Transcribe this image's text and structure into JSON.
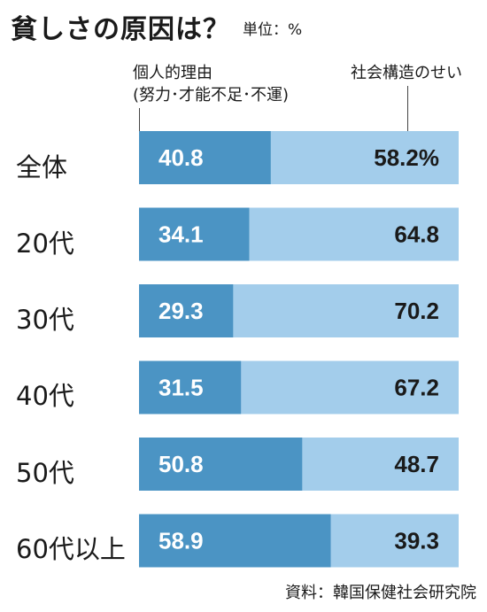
{
  "chart_data": {
    "type": "bar",
    "stacked": "horizontal-100",
    "title": "貧しさの原因は？",
    "unit_label": "単位：%",
    "series": [
      {
        "name": "個人的理由\n(努力･才能不足･不運)",
        "name_lines": [
          "個人的理由",
          "(努力･才能不足･不運)"
        ],
        "color": "#4b94c4",
        "values": [
          40.8,
          34.1,
          29.3,
          31.5,
          50.8,
          58.9
        ],
        "labels": [
          "40.8",
          "34.1",
          "29.3",
          "31.5",
          "50.8",
          "58.9"
        ]
      },
      {
        "name": "社会構造のせい",
        "name_lines": [
          "社会構造のせい"
        ],
        "color": "#a3cdeb",
        "values": [
          58.2,
          64.8,
          70.2,
          67.2,
          48.7,
          39.3
        ],
        "labels": [
          "58.2%",
          "64.8",
          "70.2",
          "67.2",
          "48.7",
          "39.3"
        ]
      }
    ],
    "categories": [
      "全体",
      "20代",
      "30代",
      "40代",
      "50代",
      "60代以上"
    ],
    "source": "資料：韓国保健社会研究院"
  }
}
